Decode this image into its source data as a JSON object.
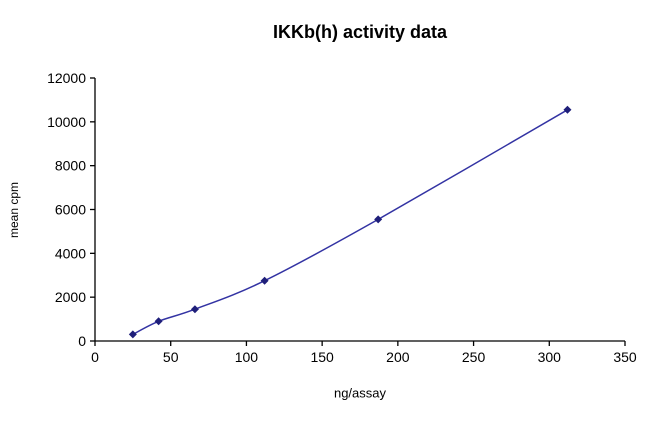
{
  "chart_data": {
    "type": "line",
    "title": "IKKb(h) activity data",
    "xlabel": "ng/assay",
    "ylabel": "mean cpm",
    "xlim": [
      0,
      350
    ],
    "ylim": [
      0,
      12000
    ],
    "xticks": [
      0,
      50,
      100,
      150,
      200,
      250,
      300,
      350
    ],
    "yticks": [
      0,
      2000,
      4000,
      6000,
      8000,
      10000,
      12000
    ],
    "grid": false,
    "legend": "none",
    "smoothed": true,
    "line_color": "#3333A3",
    "marker_color": "#1F1F7A",
    "marker": "diamond",
    "series": [
      {
        "name": "IKKb(h)",
        "x": [
          25,
          42,
          66,
          112,
          187,
          312
        ],
        "y": [
          300,
          900,
          1450,
          2750,
          5550,
          10550
        ]
      }
    ]
  }
}
